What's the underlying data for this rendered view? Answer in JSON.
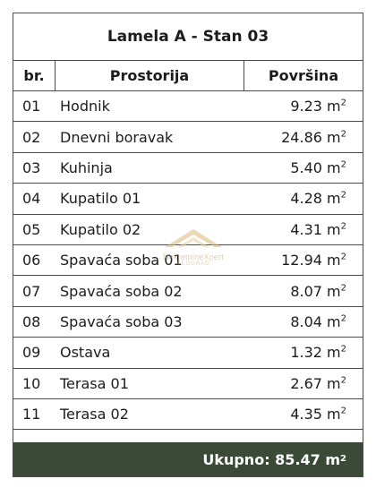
{
  "title": "Lamela A - Stan 03",
  "headers": {
    "number": "br.",
    "room": "Prostorija",
    "area": "Površina"
  },
  "unit": "m",
  "unit_exp": "2",
  "rooms": [
    {
      "no": "01",
      "name": "Hodnik",
      "area": "9.23"
    },
    {
      "no": "02",
      "name": "Dnevni boravak",
      "area": "24.86"
    },
    {
      "no": "03",
      "name": "Kuhinja",
      "area": "5.40"
    },
    {
      "no": "04",
      "name": "Kupatilo 01",
      "area": "4.28"
    },
    {
      "no": "05",
      "name": "Kupatilo 02",
      "area": "4.31"
    },
    {
      "no": "06",
      "name": "Spavaća soba 01",
      "area": "12.94"
    },
    {
      "no": "07",
      "name": "Spavaća soba 02",
      "area": "8.07"
    },
    {
      "no": "08",
      "name": "Spavaća soba 03",
      "area": "8.04"
    },
    {
      "no": "09",
      "name": "Ostava",
      "area": "1.32"
    },
    {
      "no": "10",
      "name": "Terasa 01",
      "area": "2.67"
    },
    {
      "no": "11",
      "name": "Terasa 02",
      "area": "4.35"
    }
  ],
  "total_label": "Ukupno:",
  "total_value": "85.47",
  "watermark": {
    "brand": "NekretnineXpert",
    "sub": "BEOGRAD"
  },
  "colors": {
    "footer_bg": "#3a4a37",
    "border": "#4a4a4a",
    "watermark": "#c9a96a"
  }
}
